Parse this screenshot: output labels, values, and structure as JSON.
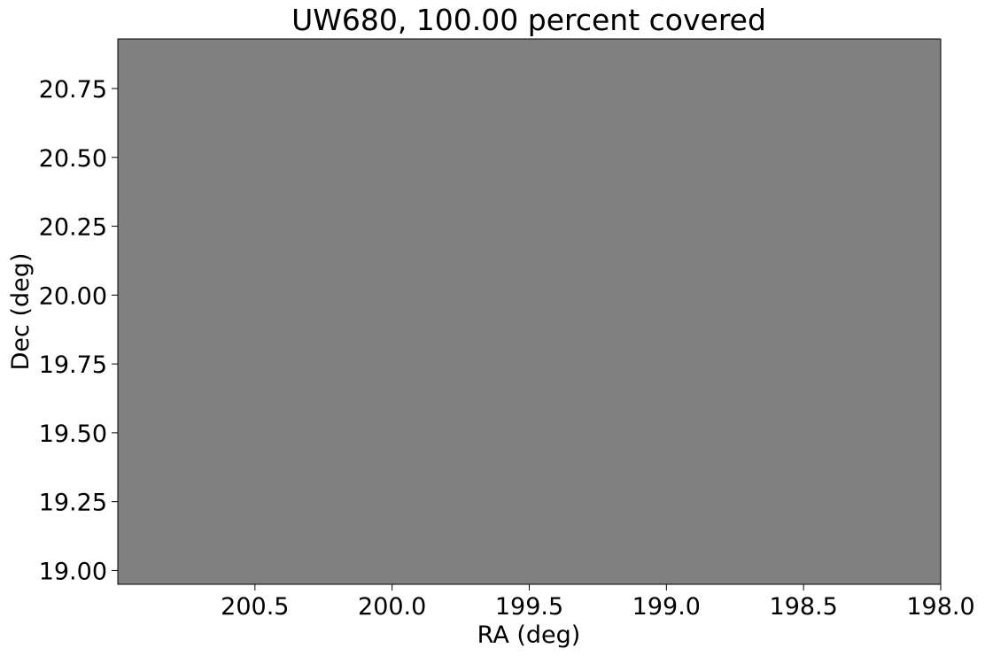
{
  "chart_data": {
    "type": "heatmap",
    "title": "UW680, 100.00 percent covered",
    "xlabel": "RA (deg)",
    "ylabel": "Dec (deg)",
    "xlim": [
      201.0,
      198.0
    ],
    "ylim": [
      18.95,
      20.93
    ],
    "x_inverted": true,
    "xticks": [
      200.5,
      200.0,
      199.5,
      199.0,
      198.5,
      198.0
    ],
    "xtick_labels": [
      "200.5",
      "200.0",
      "199.5",
      "199.0",
      "198.5",
      "198.0"
    ],
    "yticks": [
      19.0,
      19.25,
      19.5,
      19.75,
      20.0,
      20.25,
      20.5,
      20.75
    ],
    "ytick_labels": [
      "19.00",
      "19.25",
      "19.50",
      "19.75",
      "20.00",
      "20.25",
      "20.50",
      "20.75"
    ],
    "coverage_percent": 100.0,
    "coverage_region": {
      "ra": [
        201.0,
        198.0
      ],
      "dec": [
        18.95,
        20.93
      ]
    },
    "fill_color": "#808080",
    "grid": false
  }
}
